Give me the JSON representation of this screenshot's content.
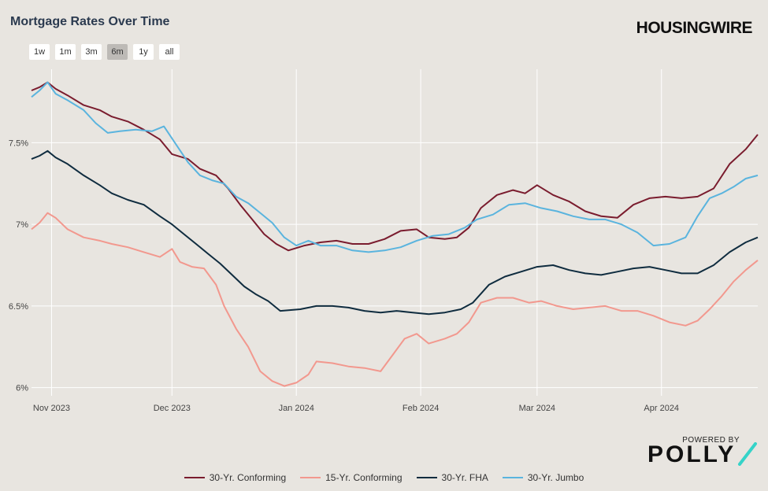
{
  "header": {
    "title": "Mortgage Rates Over Time",
    "brand": "HOUSINGWIRE"
  },
  "range_buttons": [
    {
      "label": "1w",
      "active": false
    },
    {
      "label": "1m",
      "active": false
    },
    {
      "label": "3m",
      "active": false
    },
    {
      "label": "6m",
      "active": true
    },
    {
      "label": "1y",
      "active": false
    },
    {
      "label": "all",
      "active": false
    }
  ],
  "footer": {
    "powered_by": "POWERED BY",
    "logo_text": "POLLY"
  },
  "colors": {
    "accent_slash": "#35d3c8"
  },
  "chart_data": {
    "type": "line",
    "title": "Mortgage Rates Over Time",
    "xlabel": "",
    "ylabel": "",
    "grid": true,
    "legend_position": "bottom",
    "ylim": [
      5.95,
      7.95
    ],
    "xlim": [
      "2023-10-27",
      "2024-04-25"
    ],
    "y_ticks": [
      {
        "value": 6.0,
        "label": "6%"
      },
      {
        "value": 6.5,
        "label": "6.5%"
      },
      {
        "value": 7.0,
        "label": "7%"
      },
      {
        "value": 7.5,
        "label": "7.5%"
      }
    ],
    "x_ticks": [
      {
        "date": "2023-11-01",
        "label": "Nov 2023"
      },
      {
        "date": "2023-12-01",
        "label": "Dec 2023"
      },
      {
        "date": "2024-01-01",
        "label": "Jan 2024"
      },
      {
        "date": "2024-02-01",
        "label": "Feb 2024"
      },
      {
        "date": "2024-03-01",
        "label": "Mar 2024"
      },
      {
        "date": "2024-04-01",
        "label": "Apr 2024"
      }
    ],
    "series": [
      {
        "name": "30-Yr. Conforming",
        "color": "#7a1c2e",
        "points": [
          [
            "2023-10-27",
            7.82
          ],
          [
            "2023-10-29",
            7.84
          ],
          [
            "2023-10-31",
            7.87
          ],
          [
            "2023-11-02",
            7.83
          ],
          [
            "2023-11-05",
            7.79
          ],
          [
            "2023-11-09",
            7.73
          ],
          [
            "2023-11-13",
            7.7
          ],
          [
            "2023-11-16",
            7.66
          ],
          [
            "2023-11-20",
            7.63
          ],
          [
            "2023-11-24",
            7.58
          ],
          [
            "2023-11-28",
            7.52
          ],
          [
            "2023-12-01",
            7.43
          ],
          [
            "2023-12-05",
            7.4
          ],
          [
            "2023-12-08",
            7.34
          ],
          [
            "2023-12-12",
            7.3
          ],
          [
            "2023-12-15",
            7.22
          ],
          [
            "2023-12-18",
            7.12
          ],
          [
            "2023-12-21",
            7.03
          ],
          [
            "2023-12-24",
            6.94
          ],
          [
            "2023-12-27",
            6.88
          ],
          [
            "2023-12-30",
            6.84
          ],
          [
            "2024-01-03",
            6.87
          ],
          [
            "2024-01-07",
            6.89
          ],
          [
            "2024-01-11",
            6.9
          ],
          [
            "2024-01-15",
            6.88
          ],
          [
            "2024-01-19",
            6.88
          ],
          [
            "2024-01-23",
            6.91
          ],
          [
            "2024-01-27",
            6.96
          ],
          [
            "2024-01-31",
            6.97
          ],
          [
            "2024-02-03",
            6.92
          ],
          [
            "2024-02-07",
            6.91
          ],
          [
            "2024-02-10",
            6.92
          ],
          [
            "2024-02-13",
            6.98
          ],
          [
            "2024-02-16",
            7.1
          ],
          [
            "2024-02-20",
            7.18
          ],
          [
            "2024-02-24",
            7.21
          ],
          [
            "2024-02-27",
            7.19
          ],
          [
            "2024-03-01",
            7.24
          ],
          [
            "2024-03-05",
            7.18
          ],
          [
            "2024-03-09",
            7.14
          ],
          [
            "2024-03-13",
            7.08
          ],
          [
            "2024-03-17",
            7.05
          ],
          [
            "2024-03-21",
            7.04
          ],
          [
            "2024-03-25",
            7.12
          ],
          [
            "2024-03-29",
            7.16
          ],
          [
            "2024-04-02",
            7.17
          ],
          [
            "2024-04-06",
            7.16
          ],
          [
            "2024-04-10",
            7.17
          ],
          [
            "2024-04-14",
            7.22
          ],
          [
            "2024-04-18",
            7.37
          ],
          [
            "2024-04-22",
            7.46
          ],
          [
            "2024-04-25",
            7.55
          ]
        ]
      },
      {
        "name": "15-Yr. Conforming",
        "color": "#f2988e",
        "points": [
          [
            "2023-10-27",
            6.97
          ],
          [
            "2023-10-29",
            7.01
          ],
          [
            "2023-10-31",
            7.07
          ],
          [
            "2023-11-02",
            7.04
          ],
          [
            "2023-11-05",
            6.97
          ],
          [
            "2023-11-09",
            6.92
          ],
          [
            "2023-11-13",
            6.9
          ],
          [
            "2023-11-16",
            6.88
          ],
          [
            "2023-11-20",
            6.86
          ],
          [
            "2023-11-24",
            6.83
          ],
          [
            "2023-11-28",
            6.8
          ],
          [
            "2023-12-01",
            6.85
          ],
          [
            "2023-12-03",
            6.77
          ],
          [
            "2023-12-06",
            6.74
          ],
          [
            "2023-12-09",
            6.73
          ],
          [
            "2023-12-12",
            6.63
          ],
          [
            "2023-12-14",
            6.5
          ],
          [
            "2023-12-17",
            6.36
          ],
          [
            "2023-12-20",
            6.25
          ],
          [
            "2023-12-23",
            6.1
          ],
          [
            "2023-12-26",
            6.04
          ],
          [
            "2023-12-29",
            6.01
          ],
          [
            "2024-01-01",
            6.03
          ],
          [
            "2024-01-04",
            6.08
          ],
          [
            "2024-01-06",
            6.16
          ],
          [
            "2024-01-10",
            6.15
          ],
          [
            "2024-01-14",
            6.13
          ],
          [
            "2024-01-18",
            6.12
          ],
          [
            "2024-01-22",
            6.1
          ],
          [
            "2024-01-25",
            6.2
          ],
          [
            "2024-01-28",
            6.3
          ],
          [
            "2024-01-31",
            6.33
          ],
          [
            "2024-02-03",
            6.27
          ],
          [
            "2024-02-07",
            6.3
          ],
          [
            "2024-02-10",
            6.33
          ],
          [
            "2024-02-13",
            6.4
          ],
          [
            "2024-02-16",
            6.52
          ],
          [
            "2024-02-20",
            6.55
          ],
          [
            "2024-02-24",
            6.55
          ],
          [
            "2024-02-28",
            6.52
          ],
          [
            "2024-03-02",
            6.53
          ],
          [
            "2024-03-06",
            6.5
          ],
          [
            "2024-03-10",
            6.48
          ],
          [
            "2024-03-14",
            6.49
          ],
          [
            "2024-03-18",
            6.5
          ],
          [
            "2024-03-22",
            6.47
          ],
          [
            "2024-03-26",
            6.47
          ],
          [
            "2024-03-30",
            6.44
          ],
          [
            "2024-04-03",
            6.4
          ],
          [
            "2024-04-07",
            6.38
          ],
          [
            "2024-04-10",
            6.41
          ],
          [
            "2024-04-13",
            6.48
          ],
          [
            "2024-04-16",
            6.56
          ],
          [
            "2024-04-19",
            6.65
          ],
          [
            "2024-04-22",
            6.72
          ],
          [
            "2024-04-25",
            6.78
          ]
        ]
      },
      {
        "name": "30-Yr. FHA",
        "color": "#0f2c3f",
        "points": [
          [
            "2023-10-27",
            7.4
          ],
          [
            "2023-10-29",
            7.42
          ],
          [
            "2023-10-31",
            7.45
          ],
          [
            "2023-11-02",
            7.41
          ],
          [
            "2023-11-05",
            7.37
          ],
          [
            "2023-11-09",
            7.3
          ],
          [
            "2023-11-13",
            7.24
          ],
          [
            "2023-11-16",
            7.19
          ],
          [
            "2023-11-20",
            7.15
          ],
          [
            "2023-11-24",
            7.12
          ],
          [
            "2023-11-28",
            7.05
          ],
          [
            "2023-12-01",
            7.0
          ],
          [
            "2023-12-04",
            6.94
          ],
          [
            "2023-12-07",
            6.88
          ],
          [
            "2023-12-10",
            6.82
          ],
          [
            "2023-12-13",
            6.76
          ],
          [
            "2023-12-16",
            6.69
          ],
          [
            "2023-12-19",
            6.62
          ],
          [
            "2023-12-22",
            6.57
          ],
          [
            "2023-12-25",
            6.53
          ],
          [
            "2023-12-28",
            6.47
          ],
          [
            "2024-01-02",
            6.48
          ],
          [
            "2024-01-06",
            6.5
          ],
          [
            "2024-01-10",
            6.5
          ],
          [
            "2024-01-14",
            6.49
          ],
          [
            "2024-01-18",
            6.47
          ],
          [
            "2024-01-22",
            6.46
          ],
          [
            "2024-01-26",
            6.47
          ],
          [
            "2024-01-30",
            6.46
          ],
          [
            "2024-02-03",
            6.45
          ],
          [
            "2024-02-07",
            6.46
          ],
          [
            "2024-02-11",
            6.48
          ],
          [
            "2024-02-14",
            6.52
          ],
          [
            "2024-02-18",
            6.63
          ],
          [
            "2024-02-22",
            6.68
          ],
          [
            "2024-02-26",
            6.71
          ],
          [
            "2024-03-01",
            6.74
          ],
          [
            "2024-03-05",
            6.75
          ],
          [
            "2024-03-09",
            6.72
          ],
          [
            "2024-03-13",
            6.7
          ],
          [
            "2024-03-17",
            6.69
          ],
          [
            "2024-03-21",
            6.71
          ],
          [
            "2024-03-25",
            6.73
          ],
          [
            "2024-03-29",
            6.74
          ],
          [
            "2024-04-02",
            6.72
          ],
          [
            "2024-04-06",
            6.7
          ],
          [
            "2024-04-10",
            6.7
          ],
          [
            "2024-04-14",
            6.75
          ],
          [
            "2024-04-18",
            6.83
          ],
          [
            "2024-04-22",
            6.89
          ],
          [
            "2024-04-25",
            6.92
          ]
        ]
      },
      {
        "name": "30-Yr. Jumbo",
        "color": "#5ab4de",
        "points": [
          [
            "2023-10-27",
            7.78
          ],
          [
            "2023-10-29",
            7.82
          ],
          [
            "2023-10-31",
            7.87
          ],
          [
            "2023-11-02",
            7.8
          ],
          [
            "2023-11-05",
            7.76
          ],
          [
            "2023-11-09",
            7.7
          ],
          [
            "2023-11-12",
            7.62
          ],
          [
            "2023-11-15",
            7.56
          ],
          [
            "2023-11-18",
            7.57
          ],
          [
            "2023-11-22",
            7.58
          ],
          [
            "2023-11-26",
            7.57
          ],
          [
            "2023-11-29",
            7.6
          ],
          [
            "2023-12-02",
            7.49
          ],
          [
            "2023-12-05",
            7.38
          ],
          [
            "2023-12-08",
            7.3
          ],
          [
            "2023-12-11",
            7.27
          ],
          [
            "2023-12-14",
            7.25
          ],
          [
            "2023-12-17",
            7.17
          ],
          [
            "2023-12-20",
            7.13
          ],
          [
            "2023-12-23",
            7.07
          ],
          [
            "2023-12-26",
            7.01
          ],
          [
            "2023-12-29",
            6.92
          ],
          [
            "2024-01-01",
            6.87
          ],
          [
            "2024-01-04",
            6.9
          ],
          [
            "2024-01-07",
            6.87
          ],
          [
            "2024-01-11",
            6.87
          ],
          [
            "2024-01-15",
            6.84
          ],
          [
            "2024-01-19",
            6.83
          ],
          [
            "2024-01-23",
            6.84
          ],
          [
            "2024-01-27",
            6.86
          ],
          [
            "2024-01-31",
            6.9
          ],
          [
            "2024-02-04",
            6.93
          ],
          [
            "2024-02-08",
            6.94
          ],
          [
            "2024-02-12",
            6.98
          ],
          [
            "2024-02-15",
            7.03
          ],
          [
            "2024-02-19",
            7.06
          ],
          [
            "2024-02-23",
            7.12
          ],
          [
            "2024-02-27",
            7.13
          ],
          [
            "2024-03-02",
            7.1
          ],
          [
            "2024-03-06",
            7.08
          ],
          [
            "2024-03-10",
            7.05
          ],
          [
            "2024-03-14",
            7.03
          ],
          [
            "2024-03-18",
            7.03
          ],
          [
            "2024-03-22",
            7.0
          ],
          [
            "2024-03-26",
            6.95
          ],
          [
            "2024-03-30",
            6.87
          ],
          [
            "2024-04-03",
            6.88
          ],
          [
            "2024-04-07",
            6.92
          ],
          [
            "2024-04-10",
            7.05
          ],
          [
            "2024-04-13",
            7.16
          ],
          [
            "2024-04-16",
            7.19
          ],
          [
            "2024-04-19",
            7.23
          ],
          [
            "2024-04-22",
            7.28
          ],
          [
            "2024-04-25",
            7.3
          ]
        ]
      }
    ]
  }
}
